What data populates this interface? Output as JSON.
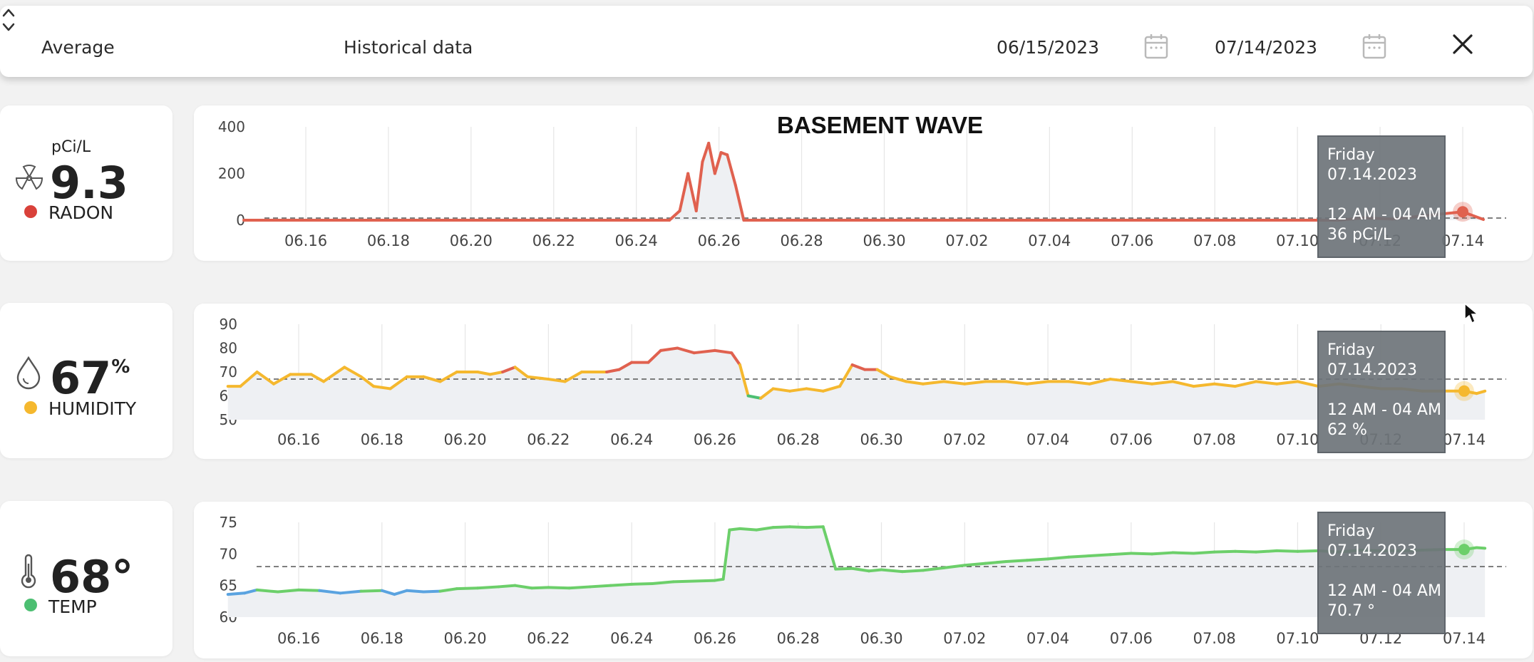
{
  "toolbar": {
    "aggregate_label": "Average",
    "view_label": "Historical data",
    "start_date": "06/15/2023",
    "end_date": "07/14/2023"
  },
  "device_title": "BASEMENT WAVE",
  "metrics": {
    "radon": {
      "unit": "pCi/L",
      "value": "9.3",
      "label": "RADON",
      "color": "#d9413a"
    },
    "humidity": {
      "value": "67",
      "unit": "%",
      "label": "HUMIDITY",
      "color": "#f5b82e"
    },
    "temp": {
      "value": "68°",
      "label": "TEMP",
      "color": "#4cbf72"
    }
  },
  "tooltips": {
    "radon": {
      "day": "Friday",
      "date": "07.14.2023",
      "time": "12 AM - 04 AM",
      "reading": "36 pCi/L"
    },
    "humidity": {
      "day": "Friday",
      "date": "07.14.2023",
      "time": "12 AM - 04 AM",
      "reading": "62 %"
    },
    "temp": {
      "day": "Friday",
      "date": "07.14.2023",
      "time": "12 AM - 04 AM",
      "reading": "70.7 °"
    }
  },
  "chart_data": [
    {
      "type": "line",
      "title": "BASEMENT WAVE",
      "x_ticks": [
        "06.16",
        "06.18",
        "06.20",
        "06.22",
        "06.24",
        "06.26",
        "06.28",
        "06.30",
        "07.02",
        "07.04",
        "07.06",
        "07.08",
        "07.10",
        "07.12",
        "07.14"
      ],
      "y_ticks": [
        0,
        200,
        400
      ],
      "ylim": [
        0,
        400
      ],
      "x_range_days": [
        14.5,
        44.5
      ],
      "series": [
        {
          "color": "#e0614f",
          "points": [
            [
              14.5,
              0
            ],
            [
              24.8,
              0
            ],
            [
              25.05,
              40
            ],
            [
              25.25,
              200
            ],
            [
              25.45,
              40
            ],
            [
              25.6,
              250
            ],
            [
              25.75,
              330
            ],
            [
              25.9,
              200
            ],
            [
              26.05,
              290
            ],
            [
              26.2,
              280
            ],
            [
              26.4,
              150
            ],
            [
              26.6,
              0
            ],
            [
              41,
              0
            ],
            [
              41.6,
              10
            ],
            [
              42.3,
              5
            ],
            [
              44.0,
              36
            ],
            [
              44.5,
              3
            ]
          ]
        }
      ],
      "reference_line": 9.3,
      "highlight": {
        "x": 44.0,
        "y": 36
      }
    },
    {
      "type": "line",
      "x_ticks": [
        "06.16",
        "06.18",
        "06.20",
        "06.22",
        "06.24",
        "06.26",
        "06.28",
        "06.30",
        "07.02",
        "07.04",
        "07.06",
        "07.08",
        "07.10",
        "07.12",
        "07.14"
      ],
      "y_ticks": [
        50,
        60,
        70,
        80,
        90
      ],
      "ylim": [
        50,
        90
      ],
      "x_range_days": [
        14.3,
        44.5
      ],
      "series": [
        {
          "colors": {
            "normal": "#f5b82e",
            "high": "#e0614f",
            "low": "#4cbf72"
          },
          "points": [
            [
              14.3,
              64
            ],
            [
              14.6,
              64
            ],
            [
              15,
              70
            ],
            [
              15.4,
              65
            ],
            [
              15.8,
              69
            ],
            [
              16.3,
              69
            ],
            [
              16.6,
              66
            ],
            [
              17.1,
              72
            ],
            [
              17.5,
              68
            ],
            [
              17.8,
              64
            ],
            [
              18.2,
              63
            ],
            [
              18.6,
              68
            ],
            [
              19.0,
              68
            ],
            [
              19.4,
              66
            ],
            [
              19.8,
              70
            ],
            [
              20.3,
              70
            ],
            [
              20.6,
              69
            ],
            [
              20.9,
              70
            ],
            [
              21.2,
              72
            ],
            [
              21.5,
              68
            ],
            [
              22.0,
              67
            ],
            [
              22.4,
              66
            ],
            [
              22.8,
              70
            ],
            [
              23.4,
              70
            ],
            [
              23.7,
              71
            ],
            [
              24.0,
              74
            ],
            [
              24.4,
              74
            ],
            [
              24.7,
              79
            ],
            [
              25.1,
              80
            ],
            [
              25.5,
              78
            ],
            [
              26.0,
              79
            ],
            [
              26.4,
              78
            ],
            [
              26.6,
              73
            ],
            [
              26.8,
              60
            ],
            [
              27.1,
              59
            ],
            [
              27.4,
              63
            ],
            [
              27.8,
              62
            ],
            [
              28.2,
              63
            ],
            [
              28.6,
              62
            ],
            [
              29.0,
              64
            ],
            [
              29.3,
              73
            ],
            [
              29.6,
              71
            ],
            [
              29.9,
              71
            ],
            [
              30.2,
              68
            ],
            [
              30.6,
              66
            ],
            [
              31.0,
              65
            ],
            [
              31.5,
              66
            ],
            [
              32.0,
              65
            ],
            [
              32.5,
              66
            ],
            [
              33.0,
              66
            ],
            [
              33.5,
              65
            ],
            [
              34.0,
              66
            ],
            [
              34.5,
              66
            ],
            [
              35.0,
              65
            ],
            [
              35.5,
              67
            ],
            [
              36.0,
              66
            ],
            [
              36.5,
              65
            ],
            [
              37.0,
              66
            ],
            [
              37.5,
              64
            ],
            [
              38.0,
              65
            ],
            [
              38.5,
              64
            ],
            [
              39.0,
              66
            ],
            [
              39.5,
              65
            ],
            [
              40.0,
              66
            ],
            [
              40.5,
              64
            ],
            [
              41.0,
              65
            ],
            [
              41.5,
              64
            ],
            [
              42.0,
              63
            ],
            [
              42.5,
              63
            ],
            [
              43.0,
              62
            ],
            [
              43.5,
              62
            ],
            [
              44.0,
              62
            ],
            [
              44.3,
              61
            ],
            [
              44.5,
              62
            ]
          ]
        }
      ],
      "reference_line": 67,
      "highlight": {
        "x": 44.0,
        "y": 62
      }
    },
    {
      "type": "line",
      "x_ticks": [
        "06.16",
        "06.18",
        "06.20",
        "06.22",
        "06.24",
        "06.26",
        "06.28",
        "06.30",
        "07.02",
        "07.04",
        "07.06",
        "07.08",
        "07.10",
        "07.12",
        "07.14"
      ],
      "y_ticks": [
        60,
        65,
        70,
        75
      ],
      "ylim": [
        60,
        75
      ],
      "x_range_days": [
        14.3,
        44.5
      ],
      "series": [
        {
          "colors": {
            "normal": "#6ccf6a",
            "low": "#5aa3e0"
          },
          "points": [
            [
              14.3,
              63.6
            ],
            [
              14.7,
              63.8
            ],
            [
              15.0,
              64.3
            ],
            [
              15.5,
              64.0
            ],
            [
              16.0,
              64.3
            ],
            [
              16.5,
              64.2
            ],
            [
              17.0,
              63.8
            ],
            [
              17.5,
              64.1
            ],
            [
              18.0,
              64.2
            ],
            [
              18.3,
              63.6
            ],
            [
              18.6,
              64.2
            ],
            [
              19.0,
              64.0
            ],
            [
              19.4,
              64.1
            ],
            [
              19.8,
              64.5
            ],
            [
              20.3,
              64.6
            ],
            [
              20.8,
              64.8
            ],
            [
              21.2,
              65.0
            ],
            [
              21.6,
              64.6
            ],
            [
              22.0,
              64.7
            ],
            [
              22.5,
              64.6
            ],
            [
              23.0,
              64.8
            ],
            [
              23.5,
              65.0
            ],
            [
              24.0,
              65.2
            ],
            [
              24.5,
              65.3
            ],
            [
              25.0,
              65.6
            ],
            [
              25.5,
              65.7
            ],
            [
              26.0,
              65.8
            ],
            [
              26.2,
              66.0
            ],
            [
              26.35,
              73.8
            ],
            [
              26.6,
              74.0
            ],
            [
              27.0,
              73.8
            ],
            [
              27.4,
              74.2
            ],
            [
              27.8,
              74.3
            ],
            [
              28.2,
              74.2
            ],
            [
              28.6,
              74.3
            ],
            [
              28.9,
              67.6
            ],
            [
              29.3,
              67.7
            ],
            [
              29.7,
              67.3
            ],
            [
              30.0,
              67.5
            ],
            [
              30.5,
              67.2
            ],
            [
              31.0,
              67.4
            ],
            [
              31.5,
              67.8
            ],
            [
              32.0,
              68.2
            ],
            [
              32.5,
              68.5
            ],
            [
              33.0,
              68.8
            ],
            [
              33.5,
              69.0
            ],
            [
              34.0,
              69.2
            ],
            [
              34.5,
              69.5
            ],
            [
              35.0,
              69.7
            ],
            [
              35.5,
              69.9
            ],
            [
              36.0,
              70.1
            ],
            [
              36.5,
              70.0
            ],
            [
              37.0,
              70.2
            ],
            [
              37.5,
              70.1
            ],
            [
              38.0,
              70.3
            ],
            [
              38.5,
              70.4
            ],
            [
              39.0,
              70.3
            ],
            [
              39.5,
              70.5
            ],
            [
              40.0,
              70.4
            ],
            [
              40.5,
              70.5
            ],
            [
              41.0,
              70.3
            ],
            [
              41.5,
              70.6
            ],
            [
              42.0,
              70.5
            ],
            [
              42.5,
              70.5
            ],
            [
              43.0,
              70.6
            ],
            [
              43.5,
              70.7
            ],
            [
              44.0,
              70.7
            ],
            [
              44.3,
              71.0
            ],
            [
              44.5,
              70.9
            ]
          ]
        }
      ],
      "reference_line": 68,
      "highlight": {
        "x": 44.0,
        "y": 70.7
      }
    }
  ]
}
